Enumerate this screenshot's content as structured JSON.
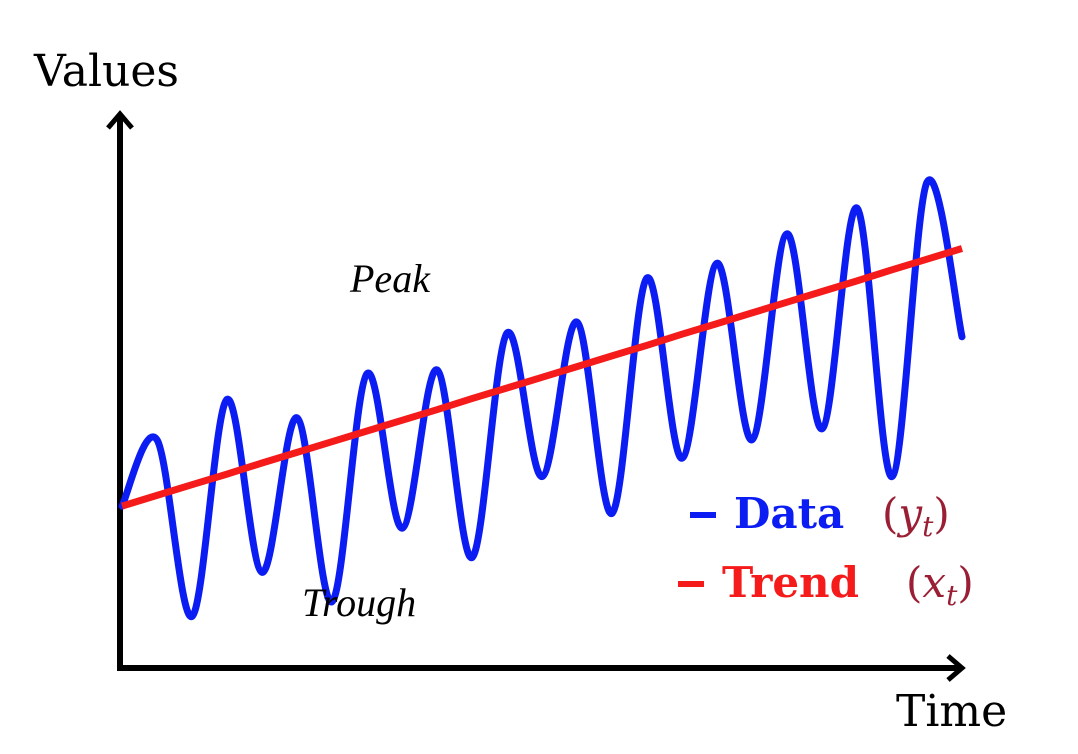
{
  "chart_data": {
    "type": "line",
    "title": "",
    "xlabel": "Time",
    "ylabel": "Values",
    "grid": false,
    "axis_ticks": false,
    "legend_position": "bottom-right",
    "x": [
      0,
      1,
      2,
      3,
      4,
      5,
      6,
      7,
      8,
      9,
      10,
      11,
      12,
      13,
      14,
      15,
      16,
      17,
      18,
      19,
      20,
      21,
      22,
      23,
      24
    ],
    "series": [
      {
        "name": "Data",
        "symbol": "y",
        "subscript": "t",
        "color": "#0b1df2",
        "values": [
          0.44,
          0.62,
          0.14,
          0.73,
          0.26,
          0.68,
          0.18,
          0.8,
          0.38,
          0.81,
          0.3,
          0.91,
          0.52,
          0.94,
          0.42,
          1.06,
          0.57,
          1.1,
          0.62,
          1.18,
          0.65,
          1.25,
          0.52,
          1.32,
          0.9
        ]
      },
      {
        "name": "Trend",
        "symbol": "x",
        "subscript": "t",
        "color": "#f51b1b",
        "values": [
          0.44,
          0.469,
          0.498,
          0.527,
          0.557,
          0.586,
          0.615,
          0.644,
          0.673,
          0.702,
          0.732,
          0.761,
          0.79,
          0.819,
          0.848,
          0.877,
          0.907,
          0.936,
          0.965,
          0.994,
          1.023,
          1.052,
          1.082,
          1.111,
          1.14
        ]
      }
    ],
    "xlim": [
      0,
      24
    ],
    "ylim": [
      0,
      1.5
    ],
    "annotations": [
      {
        "text": "Peak",
        "x": 8,
        "y": 0.93
      },
      {
        "text": "Trough",
        "x": 7.5,
        "y": 0.18
      }
    ]
  }
}
